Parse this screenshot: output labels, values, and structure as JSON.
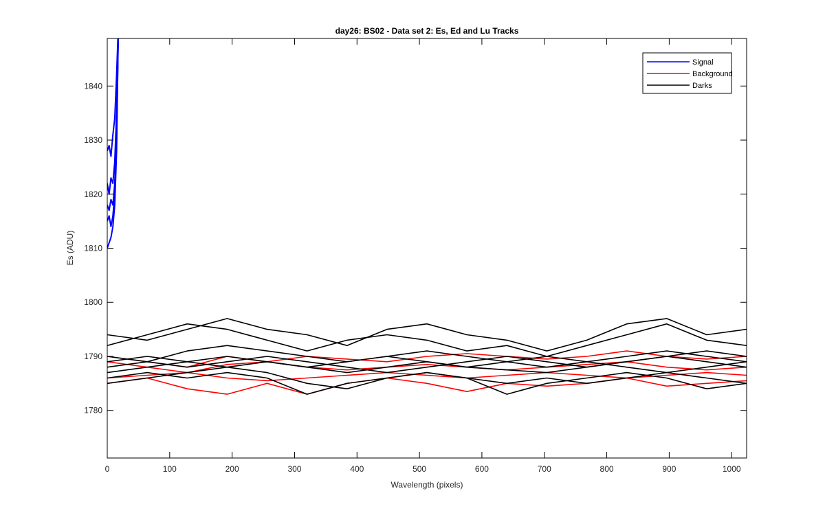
{
  "chart_data": {
    "type": "line",
    "title": "day26: BS02 - Data set 2: Es, Ed and Lu Tracks",
    "xlabel": "Wavelength (pixels)",
    "ylabel": "Es (ADU)",
    "xlim": [
      0,
      1024
    ],
    "ylim": [
      1771.2,
      1848.8
    ],
    "x_ticks": [
      0,
      100,
      200,
      300,
      400,
      500,
      600,
      700,
      800,
      900,
      1000
    ],
    "y_ticks": [
      1780,
      1790,
      1800,
      1810,
      1820,
      1830,
      1840
    ],
    "grid": false,
    "legend_position": "top-right",
    "legend": [
      "Signal",
      "Background",
      "Darks"
    ],
    "series": [
      {
        "name": "Signal",
        "color": "#0000ff",
        "traces": [
          {
            "x": [
              0,
              3,
              6,
              9,
              12,
              15,
              18
            ],
            "y": [
              1828,
              1829,
              1827,
              1831,
              1834,
              1842,
              1852
            ]
          },
          {
            "x": [
              0,
              3,
              6,
              9,
              12,
              15,
              18
            ],
            "y": [
              1822,
              1820,
              1823,
              1822,
              1826,
              1835,
              1852
            ]
          },
          {
            "x": [
              0,
              3,
              6,
              9,
              12,
              15,
              18
            ],
            "y": [
              1818,
              1817,
              1819,
              1818,
              1822,
              1832,
              1852
            ]
          },
          {
            "x": [
              0,
              3,
              6,
              9,
              12,
              15,
              18
            ],
            "y": [
              1815,
              1816,
              1814,
              1816,
              1820,
              1830,
              1852
            ]
          },
          {
            "x": [
              0,
              3,
              6,
              9,
              12,
              15,
              18
            ],
            "y": [
              1810,
              1811,
              1812,
              1814,
              1818,
              1828,
              1852
            ]
          }
        ]
      },
      {
        "name": "Background",
        "color": "#ff0000",
        "traces": [
          {
            "x": [
              0,
              64,
              128,
              192,
              256,
              320,
              384,
              448,
              512,
              576,
              640,
              704,
              768,
              832,
              896,
              960,
              1024
            ],
            "y": [
              1786,
              1786.5,
              1787,
              1786,
              1785.5,
              1786,
              1786.5,
              1787,
              1786.5,
              1786,
              1786.5,
              1787,
              1786.5,
              1786,
              1786.5,
              1787,
              1786.5
            ]
          },
          {
            "x": [
              0,
              64,
              128,
              192,
              256,
              320,
              384,
              448,
              512,
              576,
              640,
              704,
              768,
              832,
              896,
              960,
              1024
            ],
            "y": [
              1789,
              1788,
              1787,
              1788.5,
              1789,
              1788,
              1787.5,
              1788,
              1788.5,
              1788,
              1787.5,
              1788,
              1788.5,
              1789,
              1788,
              1787.5,
              1788
            ]
          },
          {
            "x": [
              0,
              64,
              128,
              192,
              256,
              320,
              384,
              448,
              512,
              576,
              640,
              704,
              768,
              832,
              896,
              960,
              1024
            ],
            "y": [
              1785,
              1786,
              1784,
              1783,
              1785,
              1783,
              1785,
              1786,
              1785,
              1783.5,
              1785,
              1784.5,
              1785,
              1786,
              1784.5,
              1785,
              1785.5
            ]
          },
          {
            "x": [
              0,
              64,
              128,
              192,
              256,
              320,
              384,
              448,
              512,
              576,
              640,
              704,
              768,
              832,
              896,
              960,
              1024
            ],
            "y": [
              1790,
              1789,
              1788,
              1790,
              1789,
              1790,
              1789.5,
              1789,
              1790,
              1790.5,
              1790,
              1789.5,
              1790,
              1791,
              1790,
              1789.5,
              1790
            ]
          }
        ]
      },
      {
        "name": "Darks",
        "color": "#000000",
        "traces": [
          {
            "x": [
              0,
              64,
              128,
              192,
              256,
              320,
              384,
              448,
              512,
              576,
              640,
              704,
              768,
              832,
              896,
              960,
              1024
            ],
            "y": [
              1794,
              1793,
              1795,
              1797,
              1795,
              1794,
              1792,
              1795,
              1796,
              1794,
              1793,
              1791,
              1793,
              1796,
              1797,
              1794,
              1795
            ]
          },
          {
            "x": [
              0,
              64,
              128,
              192,
              256,
              320,
              384,
              448,
              512,
              576,
              640,
              704,
              768,
              832,
              896,
              960,
              1024
            ],
            "y": [
              1792,
              1794,
              1796,
              1795,
              1793,
              1791,
              1793,
              1794,
              1793,
              1791,
              1792,
              1790,
              1792,
              1794,
              1796,
              1793,
              1792
            ]
          },
          {
            "x": [
              0,
              64,
              128,
              192,
              256,
              320,
              384,
              448,
              512,
              576,
              640,
              704,
              768,
              832,
              896,
              960,
              1024
            ],
            "y": [
              1788,
              1789,
              1791,
              1792,
              1791,
              1790,
              1789,
              1790,
              1791,
              1790,
              1789,
              1788,
              1789,
              1790,
              1791,
              1790,
              1789
            ]
          },
          {
            "x": [
              0,
              64,
              128,
              192,
              256,
              320,
              384,
              448,
              512,
              576,
              640,
              704,
              768,
              832,
              896,
              960,
              1024
            ],
            "y": [
              1787,
              1788,
              1789,
              1790,
              1789,
              1788,
              1787,
              1788,
              1789,
              1788,
              1787.5,
              1787,
              1788,
              1789,
              1790,
              1789,
              1788
            ]
          },
          {
            "x": [
              0,
              64,
              128,
              192,
              256,
              320,
              384,
              448,
              512,
              576,
              640,
              704,
              768,
              832,
              896,
              960,
              1024
            ],
            "y": [
              1785,
              1786,
              1787,
              1788,
              1787,
              1785,
              1784,
              1786,
              1787,
              1786,
              1785,
              1786,
              1785,
              1786,
              1787,
              1786,
              1785
            ]
          },
          {
            "x": [
              0,
              64,
              128,
              192,
              256,
              320,
              384,
              448,
              512,
              576,
              640,
              704,
              768,
              832,
              896,
              960,
              1024
            ],
            "y": [
              1786,
              1787,
              1786,
              1787,
              1786,
              1783,
              1785,
              1786,
              1787,
              1786,
              1783,
              1785,
              1786,
              1787,
              1786,
              1784,
              1785
            ]
          },
          {
            "x": [
              0,
              64,
              128,
              192,
              256,
              320,
              384,
              448,
              512,
              576,
              640,
              704,
              768,
              832,
              896,
              960,
              1024
            ],
            "y": [
              1790,
              1789,
              1788,
              1789,
              1790,
              1789,
              1788,
              1787,
              1788,
              1789,
              1790,
              1789,
              1788,
              1789,
              1790,
              1791,
              1790
            ]
          },
          {
            "x": [
              0,
              64,
              128,
              192,
              256,
              320,
              384,
              448,
              512,
              576,
              640,
              704,
              768,
              832,
              896,
              960,
              1024
            ],
            "y": [
              1789,
              1790,
              1789,
              1788,
              1789,
              1788,
              1789,
              1790,
              1789,
              1788,
              1789,
              1790,
              1789,
              1788,
              1787,
              1788,
              1789
            ]
          }
        ]
      }
    ]
  }
}
